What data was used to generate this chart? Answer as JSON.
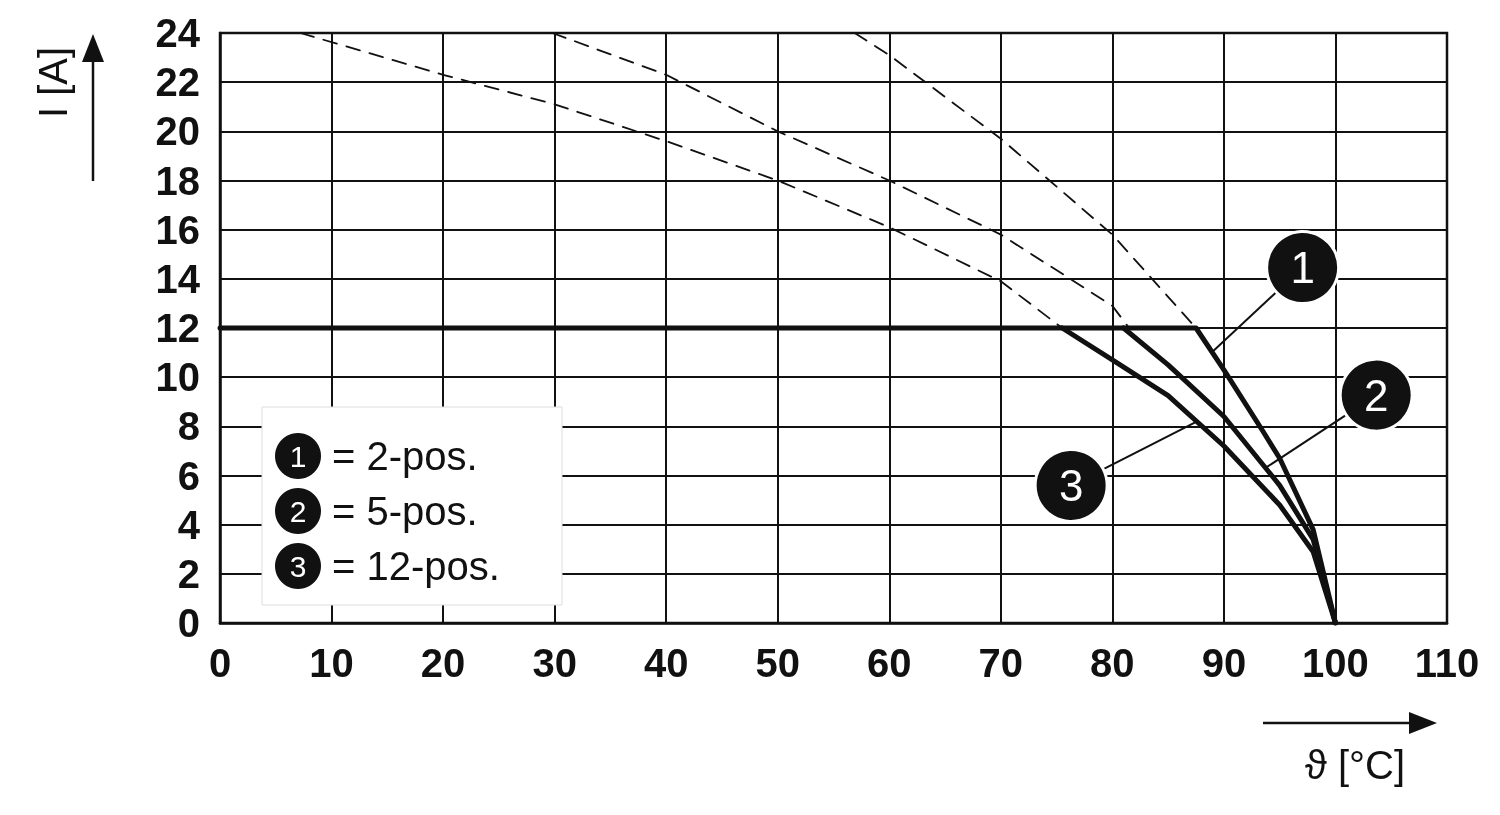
{
  "chart_data": {
    "type": "line",
    "xlabel": "ϑ [°C]",
    "ylabel": "I [A]",
    "xlim": [
      0,
      110
    ],
    "xticks": [
      0,
      10,
      20,
      30,
      40,
      50,
      60,
      70,
      80,
      90,
      100,
      110
    ],
    "ylim": [
      0,
      24
    ],
    "yticks": [
      0,
      2,
      4,
      6,
      8,
      10,
      12,
      14,
      16,
      18,
      20,
      22,
      24
    ],
    "grid": true,
    "marker": "none",
    "series": [
      {
        "color": "#111111",
        "line_style": "solid",
        "x": [
          0,
          87.5,
          90,
          93.5,
          95,
          98,
          100
        ],
        "values": [
          12,
          12,
          10.3,
          7.8,
          6.7,
          3.8,
          0
        ]
      },
      {
        "color": "#111111",
        "line_style": "solid",
        "x": [
          81,
          85,
          90,
          95,
          98,
          100
        ],
        "values": [
          12,
          10.5,
          8.4,
          5.6,
          3.4,
          0
        ]
      },
      {
        "color": "#111111",
        "line_style": "solid",
        "x": [
          75.5,
          80,
          85,
          90,
          95,
          98,
          100
        ],
        "values": [
          12,
          10.7,
          9.25,
          7.2,
          4.8,
          2.9,
          0
        ]
      },
      {
        "color": "#111111",
        "line_style": "dashed",
        "x": [
          56.9,
          60,
          70,
          80,
          87.5
        ],
        "values": [
          24,
          23.1,
          19.7,
          15.8,
          12
        ]
      },
      {
        "color": "#111111",
        "line_style": "dashed",
        "x": [
          29.8,
          40,
          50,
          60,
          70,
          80,
          81.5
        ],
        "values": [
          24,
          22.3,
          20,
          18,
          15.8,
          12.9,
          12
        ]
      },
      {
        "color": "#111111",
        "line_style": "dashed",
        "x": [
          7.2,
          20,
          30,
          40,
          50,
          60,
          70,
          75.5
        ],
        "values": [
          24,
          22.3,
          21.1,
          19.6,
          18,
          16.1,
          13.9,
          12
        ]
      }
    ],
    "annotations": [
      {
        "text": "1",
        "x": 88.9,
        "y": 11
      },
      {
        "text": "2",
        "x": 93.7,
        "y": 6.3
      },
      {
        "text": "3",
        "x": 87.6,
        "y": 8.2
      },
      "1 = 2-pos.",
      "2 = 5-pos.",
      "3 = 12-pos."
    ]
  }
}
